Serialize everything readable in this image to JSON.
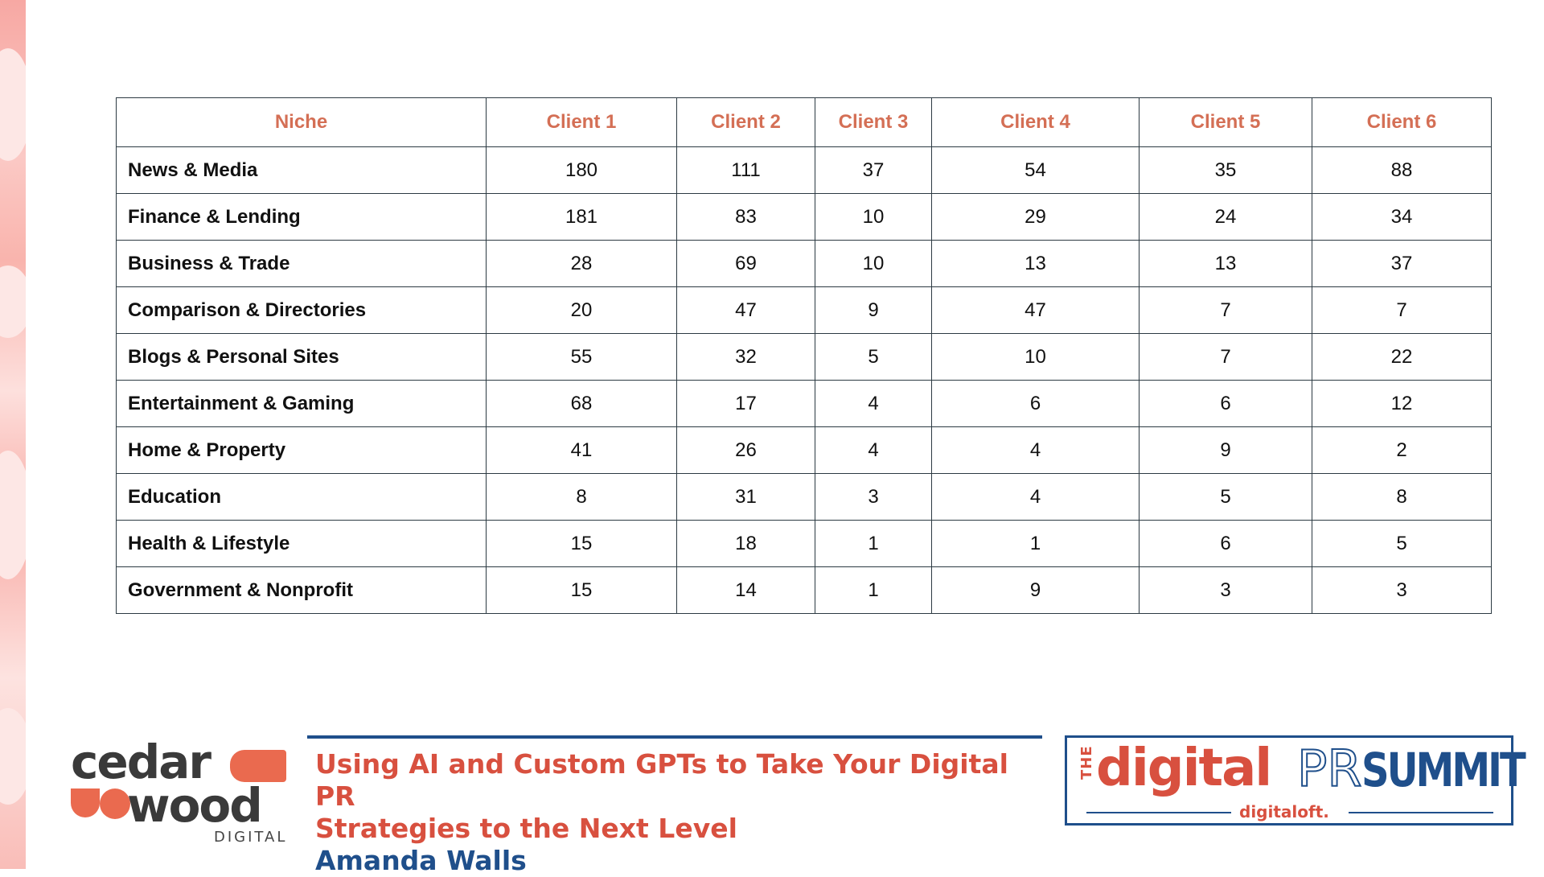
{
  "table": {
    "headers": [
      "Niche",
      "Client 1",
      "Client 2",
      "Client 3",
      "Client 4",
      "Client 5",
      "Client 6"
    ],
    "rows": [
      {
        "niche": "News & Media",
        "values": [
          "180",
          "111",
          "37",
          "54",
          "35",
          "88"
        ]
      },
      {
        "niche": "Finance & Lending",
        "values": [
          "181",
          "83",
          "10",
          "29",
          "24",
          "34"
        ]
      },
      {
        "niche": "Business & Trade",
        "values": [
          "28",
          "69",
          "10",
          "13",
          "13",
          "37"
        ]
      },
      {
        "niche": "Comparison & Directories",
        "values": [
          "20",
          "47",
          "9",
          "47",
          "7",
          "7"
        ]
      },
      {
        "niche": "Blogs & Personal Sites",
        "values": [
          "55",
          "32",
          "5",
          "10",
          "7",
          "22"
        ]
      },
      {
        "niche": "Entertainment & Gaming",
        "values": [
          "68",
          "17",
          "4",
          "6",
          "6",
          "12"
        ]
      },
      {
        "niche": "Home & Property",
        "values": [
          "41",
          "26",
          "4",
          "4",
          "9",
          "2"
        ]
      },
      {
        "niche": "Education",
        "values": [
          "8",
          "31",
          "3",
          "4",
          "5",
          "8"
        ]
      },
      {
        "niche": "Health & Lifestyle",
        "values": [
          "15",
          "18",
          "1",
          "1",
          "6",
          "5"
        ]
      },
      {
        "niche": "Government & Nonprofit",
        "values": [
          "15",
          "14",
          "1",
          "9",
          "3",
          "3"
        ]
      }
    ]
  },
  "footer": {
    "logo": {
      "line1": "cedar",
      "line2": "wood",
      "line3": "DIGITAL"
    },
    "talk": {
      "title_line1": "Using AI and Custom GPTs to Take Your Digital PR",
      "title_line2": "Strategies to the Next Level",
      "speaker": "Amanda Walls"
    },
    "summit": {
      "the": "THE",
      "digital": "digital",
      "pr": "PR",
      "summit": "SUMMIT",
      "byline": "digitaloft."
    }
  },
  "colors": {
    "header_text": "#d46f55",
    "brand_red": "#d8503f",
    "brand_blue": "#1f4f8b",
    "border": "#2c3a42"
  }
}
